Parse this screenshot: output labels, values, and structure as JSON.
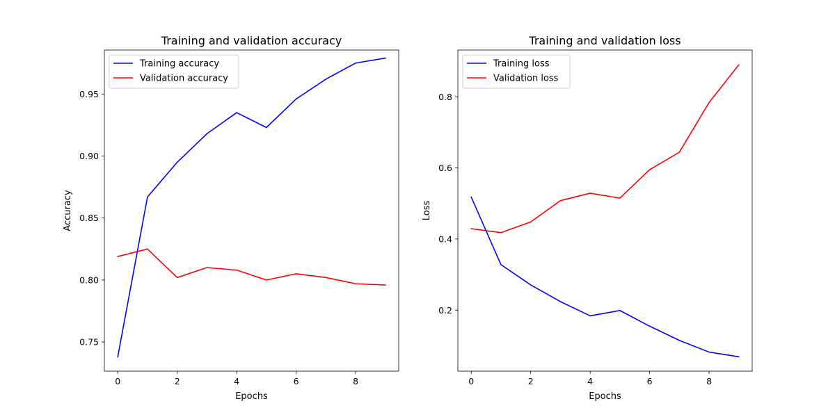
{
  "chart_data": [
    {
      "type": "line",
      "title": "Training and validation accuracy",
      "xlabel": "Epochs",
      "ylabel": "Accuracy",
      "x": [
        0,
        1,
        2,
        3,
        4,
        5,
        6,
        7,
        8,
        9
      ],
      "xlim": [
        -0.45,
        9.45
      ],
      "ylim": [
        0.7265,
        0.9855
      ],
      "xticks": [
        0,
        2,
        4,
        6,
        8
      ],
      "xtick_labels": [
        "0",
        "2",
        "4",
        "6",
        "8"
      ],
      "yticks": [
        0.75,
        0.8,
        0.85,
        0.9,
        0.95
      ],
      "ytick_labels": [
        "0.75",
        "0.80",
        "0.85",
        "0.90",
        "0.95"
      ],
      "legend_position": "upper-left",
      "grid": false,
      "series": [
        {
          "name": "Training accuracy",
          "color": "#0000ff",
          "values": [
            0.738,
            0.867,
            0.895,
            0.918,
            0.935,
            0.923,
            0.946,
            0.962,
            0.975,
            0.979
          ]
        },
        {
          "name": "Validation accuracy",
          "color": "#ff0000",
          "values": [
            0.819,
            0.825,
            0.802,
            0.81,
            0.808,
            0.8,
            0.805,
            0.802,
            0.797,
            0.796
          ]
        }
      ]
    },
    {
      "type": "line",
      "title": "Training and validation loss",
      "xlabel": "Epochs",
      "ylabel": "Loss",
      "x": [
        0,
        1,
        2,
        3,
        4,
        5,
        6,
        7,
        8,
        9
      ],
      "xlim": [
        -0.45,
        9.45
      ],
      "ylim": [
        0.0285,
        0.9315
      ],
      "xticks": [
        0,
        2,
        4,
        6,
        8
      ],
      "xtick_labels": [
        "0",
        "2",
        "4",
        "6",
        "8"
      ],
      "yticks": [
        0.2,
        0.4,
        0.6,
        0.8
      ],
      "ytick_labels": [
        "0.2",
        "0.4",
        "0.6",
        "0.8"
      ],
      "legend_position": "upper-left",
      "grid": false,
      "series": [
        {
          "name": "Training loss",
          "color": "#0000ff",
          "values": [
            0.518,
            0.328,
            0.271,
            0.224,
            0.184,
            0.199,
            0.155,
            0.115,
            0.082,
            0.069
          ]
        },
        {
          "name": "Validation loss",
          "color": "#ff0000",
          "values": [
            0.429,
            0.418,
            0.448,
            0.508,
            0.529,
            0.515,
            0.595,
            0.644,
            0.784,
            0.89
          ]
        }
      ]
    }
  ]
}
